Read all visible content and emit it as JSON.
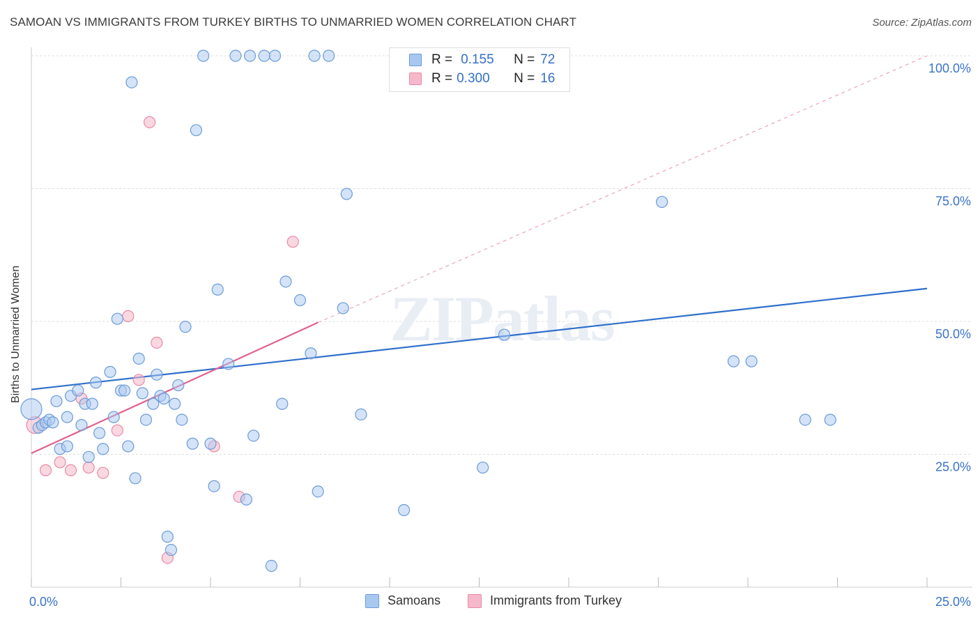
{
  "title": "SAMOAN VS IMMIGRANTS FROM TURKEY BIRTHS TO UNMARRIED WOMEN CORRELATION CHART",
  "source": "Source: ZipAtlas.com",
  "watermark": "ZIPatlas",
  "legend": {
    "series1": {
      "r_label": "R =",
      "r_value": "0.155",
      "n_label": "N =",
      "n_value": "72"
    },
    "series2": {
      "r_label": "R =",
      "r_value": "0.300",
      "n_label": "N =",
      "n_value": "16"
    }
  },
  "bottom_legend": {
    "series1": "Samoans",
    "series2": "Immigrants from Turkey"
  },
  "colors": {
    "blue_fill": "#a9c8f0",
    "blue_stroke": "#6b9bd8",
    "blue_line": "#2e6fcc",
    "pink_fill": "#f6b8cb",
    "pink_stroke": "#e88aa6",
    "pink_line": "#e0608e",
    "axis_text": "#3a73c9",
    "grid": "#dddddd"
  },
  "chart_data": {
    "type": "scatter",
    "title": "SAMOAN VS IMMIGRANTS FROM TURKEY BIRTHS TO UNMARRIED WOMEN CORRELATION CHART",
    "xlabel": "",
    "ylabel": "Births to Unmarried Women",
    "xlim": [
      0,
      25
    ],
    "ylim": [
      0,
      100
    ],
    "x_tick_labels": [
      "0.0%",
      "25.0%"
    ],
    "y_tick_labels": [
      "25.0%",
      "50.0%",
      "75.0%",
      "100.0%"
    ],
    "y_ticks": [
      25,
      50,
      75,
      100
    ],
    "grid": true,
    "series": [
      {
        "name": "Samoans",
        "r": 0.155,
        "n": 72,
        "trend": {
          "x": [
            0,
            25
          ],
          "y": [
            37.2,
            56.2
          ],
          "style": "solid"
        },
        "points": [
          [
            0.0,
            33.5
          ],
          [
            0.2,
            30.0
          ],
          [
            0.3,
            30.5
          ],
          [
            0.4,
            31.0
          ],
          [
            0.5,
            31.5
          ],
          [
            0.6,
            31.0
          ],
          [
            0.7,
            35.0
          ],
          [
            0.8,
            26.0
          ],
          [
            1.0,
            26.5
          ],
          [
            1.0,
            32.0
          ],
          [
            1.1,
            36.0
          ],
          [
            1.3,
            37.0
          ],
          [
            1.4,
            30.5
          ],
          [
            1.5,
            34.5
          ],
          [
            1.6,
            24.5
          ],
          [
            1.7,
            34.5
          ],
          [
            1.8,
            38.5
          ],
          [
            1.9,
            29.0
          ],
          [
            2.0,
            26.0
          ],
          [
            2.2,
            40.5
          ],
          [
            2.3,
            32.0
          ],
          [
            2.4,
            50.5
          ],
          [
            2.5,
            37.0
          ],
          [
            2.6,
            37.0
          ],
          [
            2.7,
            26.5
          ],
          [
            2.8,
            95.0
          ],
          [
            2.9,
            20.5
          ],
          [
            3.0,
            43.0
          ],
          [
            3.1,
            36.5
          ],
          [
            3.2,
            31.5
          ],
          [
            3.4,
            34.5
          ],
          [
            3.5,
            40.0
          ],
          [
            3.6,
            36.0
          ],
          [
            3.7,
            35.5
          ],
          [
            3.8,
            9.5
          ],
          [
            3.9,
            7.0
          ],
          [
            4.0,
            34.5
          ],
          [
            4.1,
            38.0
          ],
          [
            4.2,
            31.5
          ],
          [
            4.3,
            49.0
          ],
          [
            4.5,
            27.0
          ],
          [
            4.6,
            86.0
          ],
          [
            4.8,
            100.0
          ],
          [
            5.0,
            27.0
          ],
          [
            5.1,
            19.0
          ],
          [
            5.2,
            56.0
          ],
          [
            5.5,
            42.0
          ],
          [
            5.7,
            100.0
          ],
          [
            6.0,
            16.5
          ],
          [
            6.1,
            100.0
          ],
          [
            6.2,
            28.5
          ],
          [
            6.5,
            100.0
          ],
          [
            6.7,
            4.0
          ],
          [
            6.8,
            100.0
          ],
          [
            7.0,
            34.5
          ],
          [
            7.1,
            57.5
          ],
          [
            7.5,
            54.0
          ],
          [
            7.8,
            44.0
          ],
          [
            7.9,
            100.0
          ],
          [
            8.0,
            18.0
          ],
          [
            8.3,
            100.0
          ],
          [
            8.7,
            52.5
          ],
          [
            8.8,
            74.0
          ],
          [
            9.2,
            32.5
          ],
          [
            10.4,
            14.5
          ],
          [
            12.6,
            22.5
          ],
          [
            13.2,
            47.5
          ],
          [
            17.6,
            72.5
          ],
          [
            19.6,
            42.5
          ],
          [
            20.1,
            42.5
          ],
          [
            21.6,
            31.5
          ],
          [
            22.3,
            31.5
          ]
        ]
      },
      {
        "name": "Immigrants from Turkey",
        "r": 0.3,
        "n": 16,
        "trend": {
          "x": [
            0,
            8
          ],
          "y": [
            25.2,
            49.8
          ],
          "style": "solid",
          "extended_to": [
            25,
            100
          ],
          "extended_style": "dashed"
        },
        "points": [
          [
            0.1,
            30.5
          ],
          [
            0.4,
            22.0
          ],
          [
            0.8,
            23.5
          ],
          [
            1.1,
            22.0
          ],
          [
            1.4,
            35.5
          ],
          [
            1.6,
            22.5
          ],
          [
            2.0,
            21.5
          ],
          [
            2.4,
            29.5
          ],
          [
            2.7,
            51.0
          ],
          [
            3.0,
            39.0
          ],
          [
            3.3,
            87.5
          ],
          [
            3.5,
            46.0
          ],
          [
            3.8,
            5.5
          ],
          [
            5.1,
            26.5
          ],
          [
            5.8,
            17.0
          ],
          [
            7.3,
            65.0
          ]
        ]
      }
    ]
  }
}
